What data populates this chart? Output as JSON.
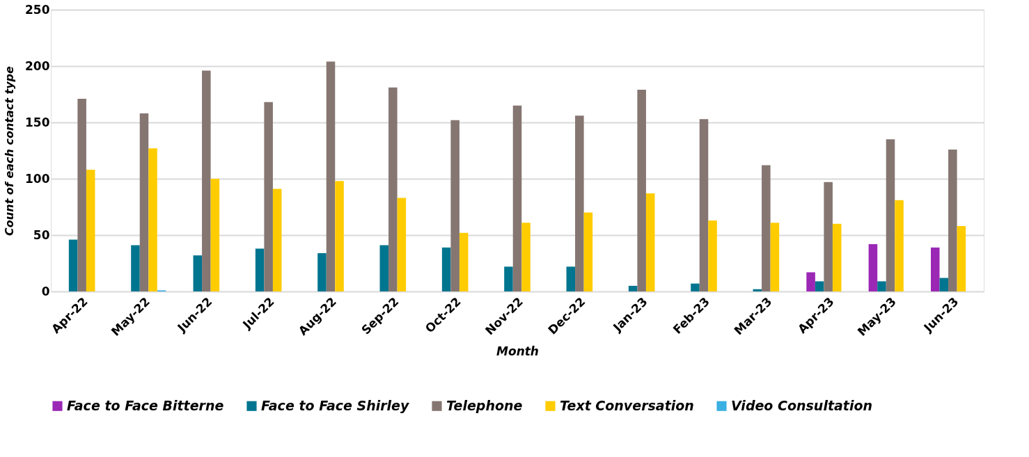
{
  "chart_data": {
    "type": "bar",
    "xlabel": "Month",
    "ylabel": "Count of each contact type",
    "categories": [
      "Apr-22",
      "May-22",
      "Jun-22",
      "Jul-22",
      "Aug-22",
      "Sep-22",
      "Oct-22",
      "Nov-22",
      "Dec-22",
      "Jan-23",
      "Feb-23",
      "Mar-23",
      "Apr-23",
      "May-23",
      "Jun-23"
    ],
    "series": [
      {
        "name": "Face to Face Bitterne",
        "color": "#9b27b5",
        "values": [
          null,
          null,
          null,
          null,
          null,
          null,
          null,
          null,
          null,
          null,
          null,
          null,
          17,
          42,
          39
        ]
      },
      {
        "name": "Face to Face Shirley",
        "color": "#00758f",
        "values": [
          46,
          41,
          32,
          38,
          34,
          41,
          39,
          22,
          22,
          5,
          7,
          2,
          9,
          9,
          12
        ]
      },
      {
        "name": "Telephone",
        "color": "#857672",
        "values": [
          171,
          158,
          196,
          168,
          204,
          181,
          152,
          165,
          156,
          179,
          153,
          112,
          97,
          135,
          126
        ]
      },
      {
        "name": "Text Conversation",
        "color": "#ffcc00",
        "values": [
          108,
          127,
          100,
          91,
          98,
          83,
          52,
          61,
          70,
          87,
          63,
          61,
          60,
          81,
          58
        ]
      },
      {
        "name": "Video Consultation",
        "color": "#3bb0e3",
        "values": [
          null,
          1,
          null,
          null,
          null,
          null,
          null,
          null,
          null,
          null,
          null,
          null,
          null,
          null,
          null
        ]
      }
    ],
    "ylim": [
      0,
      250
    ],
    "yticks": [
      0,
      50,
      100,
      150,
      200,
      250
    ],
    "grid": "y",
    "legend": "bottom"
  }
}
